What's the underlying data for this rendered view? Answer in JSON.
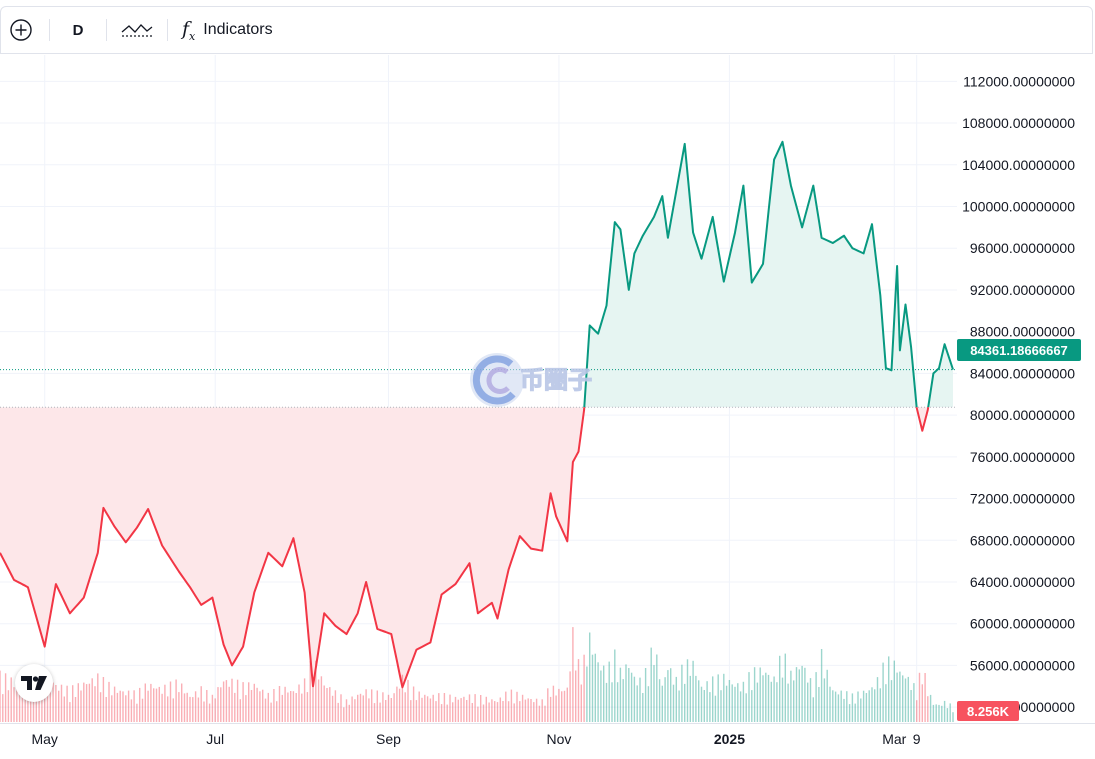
{
  "toolbar": {
    "add_icon": "plus-circle-icon",
    "interval": "D",
    "chart_type_icon": "area-line-icon",
    "indicators_icon": "fx-icon",
    "indicators_label": "Indicators"
  },
  "watermark": {
    "text": "币圈子"
  },
  "colors": {
    "up_line": "#089981",
    "up_fill": "#e6f5f2",
    "down_line": "#f23645",
    "down_fill": "#fde7e9",
    "grid": "#f0f3fa",
    "axis_text": "#131722",
    "price_tag": "#089981",
    "volume_tag": "#f7525f"
  },
  "chart_data": {
    "type": "area",
    "series_type": "baseline",
    "baseline": 80750,
    "y_axis": {
      "position": "right",
      "ylim": [
        50000,
        114000
      ],
      "ticks": [
        52000,
        56000,
        60000,
        64000,
        68000,
        72000,
        76000,
        80000,
        84000,
        88000,
        92000,
        96000,
        100000,
        104000,
        108000,
        112000
      ],
      "tick_labels": [
        "52000.00000000",
        "56000.00000000",
        "60000.00000000",
        "64000.00000000",
        "68000.00000000",
        "72000.00000000",
        "76000.00000000",
        "80000.00000000",
        "84000.00000000",
        "88000.00000000",
        "92000.00000000",
        "96000.00000000",
        "100000.00000000",
        "104000.00000000",
        "108000.00000000",
        "112000.00000000"
      ]
    },
    "x_axis": {
      "start_date": "2024-04-15",
      "end_date": "2025-03-22",
      "ticks": [
        {
          "label": "May",
          "date": "2024-05-01",
          "bold": false
        },
        {
          "label": "Jul",
          "date": "2024-07-01",
          "bold": false
        },
        {
          "label": "Sep",
          "date": "2024-09-01",
          "bold": false
        },
        {
          "label": "Nov",
          "date": "2024-11-01",
          "bold": false
        },
        {
          "label": "2025",
          "date": "2025-01-01",
          "bold": true
        },
        {
          "label": "Mar",
          "date": "2025-03-01",
          "bold": false
        },
        {
          "label": "9",
          "date": "2025-03-09",
          "bold": false
        }
      ]
    },
    "series": [
      {
        "price": [
          [
            "2024-04-15",
            66800
          ],
          [
            "2024-04-20",
            64200
          ],
          [
            "2024-04-25",
            63500
          ],
          [
            "2024-05-01",
            57800
          ],
          [
            "2024-05-05",
            63800
          ],
          [
            "2024-05-10",
            61000
          ],
          [
            "2024-05-15",
            62500
          ],
          [
            "2024-05-20",
            66800
          ],
          [
            "2024-05-22",
            71100
          ],
          [
            "2024-05-26",
            69300
          ],
          [
            "2024-05-30",
            67800
          ],
          [
            "2024-06-03",
            69200
          ],
          [
            "2024-06-07",
            71000
          ],
          [
            "2024-06-12",
            67500
          ],
          [
            "2024-06-18",
            65000
          ],
          [
            "2024-06-22",
            63500
          ],
          [
            "2024-06-26",
            61800
          ],
          [
            "2024-06-30",
            62500
          ],
          [
            "2024-07-04",
            58000
          ],
          [
            "2024-07-07",
            56000
          ],
          [
            "2024-07-11",
            57800
          ],
          [
            "2024-07-15",
            63000
          ],
          [
            "2024-07-20",
            66800
          ],
          [
            "2024-07-25",
            65500
          ],
          [
            "2024-07-29",
            68200
          ],
          [
            "2024-08-02",
            63000
          ],
          [
            "2024-08-05",
            54000
          ],
          [
            "2024-08-09",
            61000
          ],
          [
            "2024-08-13",
            59800
          ],
          [
            "2024-08-17",
            59000
          ],
          [
            "2024-08-21",
            61000
          ],
          [
            "2024-08-24",
            64000
          ],
          [
            "2024-08-28",
            59500
          ],
          [
            "2024-09-02",
            59000
          ],
          [
            "2024-09-06",
            53900
          ],
          [
            "2024-09-11",
            57500
          ],
          [
            "2024-09-16",
            58200
          ],
          [
            "2024-09-20",
            62800
          ],
          [
            "2024-09-25",
            63800
          ],
          [
            "2024-09-30",
            65800
          ],
          [
            "2024-10-03",
            61000
          ],
          [
            "2024-10-08",
            62000
          ],
          [
            "2024-10-10",
            60500
          ],
          [
            "2024-10-14",
            65200
          ],
          [
            "2024-10-18",
            68400
          ],
          [
            "2024-10-22",
            67200
          ],
          [
            "2024-10-26",
            67000
          ],
          [
            "2024-10-29",
            72500
          ],
          [
            "2024-10-31",
            70300
          ],
          [
            "2024-11-04",
            67900
          ],
          [
            "2024-11-06",
            75500
          ],
          [
            "2024-11-08",
            76500
          ],
          [
            "2024-11-10",
            80500
          ],
          [
            "2024-11-12",
            88600
          ],
          [
            "2024-11-15",
            87800
          ],
          [
            "2024-11-18",
            90500
          ],
          [
            "2024-11-21",
            98500
          ],
          [
            "2024-11-23",
            97800
          ],
          [
            "2024-11-26",
            92000
          ],
          [
            "2024-11-28",
            95500
          ],
          [
            "2024-12-01",
            97200
          ],
          [
            "2024-12-05",
            99000
          ],
          [
            "2024-12-08",
            101000
          ],
          [
            "2024-12-10",
            97000
          ],
          [
            "2024-12-13",
            101500
          ],
          [
            "2024-12-16",
            106000
          ],
          [
            "2024-12-19",
            97500
          ],
          [
            "2024-12-22",
            95000
          ],
          [
            "2024-12-26",
            99000
          ],
          [
            "2024-12-30",
            92800
          ],
          [
            "2025-01-03",
            97500
          ],
          [
            "2025-01-06",
            102000
          ],
          [
            "2025-01-09",
            92700
          ],
          [
            "2025-01-13",
            94500
          ],
          [
            "2025-01-17",
            104500
          ],
          [
            "2025-01-20",
            106200
          ],
          [
            "2025-01-23",
            102000
          ],
          [
            "2025-01-27",
            98000
          ],
          [
            "2025-01-31",
            102000
          ],
          [
            "2025-02-03",
            97000
          ],
          [
            "2025-02-07",
            96500
          ],
          [
            "2025-02-11",
            97200
          ],
          [
            "2025-02-14",
            96000
          ],
          [
            "2025-02-18",
            95500
          ],
          [
            "2025-02-21",
            98300
          ],
          [
            "2025-02-24",
            91500
          ],
          [
            "2025-02-26",
            84500
          ],
          [
            "2025-02-28",
            84300
          ],
          [
            "2025-03-02",
            94300
          ],
          [
            "2025-03-03",
            86200
          ],
          [
            "2025-03-05",
            90600
          ],
          [
            "2025-03-07",
            86500
          ],
          [
            "2025-03-09",
            80700
          ],
          [
            "2025-03-11",
            78500
          ],
          [
            "2025-03-13",
            80500
          ],
          [
            "2025-03-15",
            84000
          ],
          [
            "2025-03-17",
            84500
          ],
          [
            "2025-03-19",
            86800
          ],
          [
            "2025-03-22",
            84361
          ]
        ],
        "volume": [
          [
            "2024-04-15",
            54
          ],
          [
            "2024-04-20",
            47
          ],
          [
            "2024-04-25",
            41
          ],
          [
            "2024-05-01",
            60
          ],
          [
            "2024-05-05",
            43
          ],
          [
            "2024-05-10",
            37
          ],
          [
            "2024-05-15",
            45
          ],
          [
            "2024-05-20",
            52
          ],
          [
            "2024-05-25",
            40
          ],
          [
            "2024-05-30",
            35
          ],
          [
            "2024-06-03",
            33
          ],
          [
            "2024-06-07",
            44
          ],
          [
            "2024-06-12",
            39
          ],
          [
            "2024-06-18",
            46
          ],
          [
            "2024-06-22",
            30
          ],
          [
            "2024-06-26",
            38
          ],
          [
            "2024-06-30",
            29
          ],
          [
            "2024-07-04",
            49
          ],
          [
            "2024-07-07",
            47
          ],
          [
            "2024-07-11",
            42
          ],
          [
            "2024-07-15",
            44
          ],
          [
            "2024-07-20",
            31
          ],
          [
            "2024-07-25",
            40
          ],
          [
            "2024-07-29",
            36
          ],
          [
            "2024-08-02",
            46
          ],
          [
            "2024-08-05",
            73
          ],
          [
            "2024-08-09",
            45
          ],
          [
            "2024-08-13",
            34
          ],
          [
            "2024-08-17",
            24
          ],
          [
            "2024-08-21",
            32
          ],
          [
            "2024-08-24",
            36
          ],
          [
            "2024-08-28",
            33
          ],
          [
            "2024-09-02",
            30
          ],
          [
            "2024-09-06",
            51
          ],
          [
            "2024-09-11",
            34
          ],
          [
            "2024-09-16",
            30
          ],
          [
            "2024-09-20",
            31
          ],
          [
            "2024-09-25",
            28
          ],
          [
            "2024-09-30",
            30
          ],
          [
            "2024-10-03",
            29
          ],
          [
            "2024-10-08",
            26
          ],
          [
            "2024-10-10",
            25
          ],
          [
            "2024-10-14",
            35
          ],
          [
            "2024-10-18",
            31
          ],
          [
            "2024-10-22",
            27
          ],
          [
            "2024-10-26",
            24
          ],
          [
            "2024-10-29",
            41
          ],
          [
            "2024-10-31",
            37
          ],
          [
            "2024-11-04",
            39
          ],
          [
            "2024-11-06",
            102
          ],
          [
            "2024-11-08",
            66
          ],
          [
            "2024-11-10",
            71
          ],
          [
            "2024-11-12",
            98
          ],
          [
            "2024-11-15",
            71
          ],
          [
            "2024-11-18",
            58
          ],
          [
            "2024-11-21",
            76
          ],
          [
            "2024-11-23",
            58
          ],
          [
            "2024-11-26",
            68
          ],
          [
            "2024-11-28",
            52
          ],
          [
            "2024-12-01",
            46
          ],
          [
            "2024-12-05",
            89
          ],
          [
            "2024-12-08",
            42
          ],
          [
            "2024-12-10",
            66
          ],
          [
            "2024-12-13",
            48
          ],
          [
            "2024-12-16",
            66
          ],
          [
            "2024-12-19",
            68
          ],
          [
            "2024-12-22",
            41
          ],
          [
            "2024-12-26",
            48
          ],
          [
            "2024-12-30",
            52
          ],
          [
            "2025-01-03",
            44
          ],
          [
            "2025-01-06",
            43
          ],
          [
            "2025-01-09",
            57
          ],
          [
            "2025-01-13",
            61
          ],
          [
            "2025-01-17",
            50
          ],
          [
            "2025-01-20",
            80
          ],
          [
            "2025-01-23",
            55
          ],
          [
            "2025-01-27",
            69
          ],
          [
            "2025-01-31",
            40
          ],
          [
            "2025-02-03",
            77
          ],
          [
            "2025-02-07",
            37
          ],
          [
            "2025-02-11",
            34
          ],
          [
            "2025-02-14",
            30
          ],
          [
            "2025-02-18",
            35
          ],
          [
            "2025-02-21",
            40
          ],
          [
            "2025-02-24",
            53
          ],
          [
            "2025-02-26",
            72
          ],
          [
            "2025-02-28",
            66
          ],
          [
            "2025-03-02",
            67
          ],
          [
            "2025-03-03",
            58
          ],
          [
            "2025-03-05",
            55
          ],
          [
            "2025-03-07",
            46
          ],
          [
            "2025-03-09",
            37
          ],
          [
            "2025-03-11",
            66
          ],
          [
            "2025-03-13",
            38
          ],
          [
            "2025-03-15",
            22
          ],
          [
            "2025-03-17",
            20
          ],
          [
            "2025-03-19",
            23
          ],
          [
            "2025-03-22",
            18
          ]
        ]
      }
    ],
    "last_price_label": "84361.18666667",
    "last_price": 84361.18666667,
    "volume_label": "8.256K",
    "grid": true,
    "legend": "none"
  },
  "branding": {
    "logo_icon": "tradingview-logo-icon"
  }
}
